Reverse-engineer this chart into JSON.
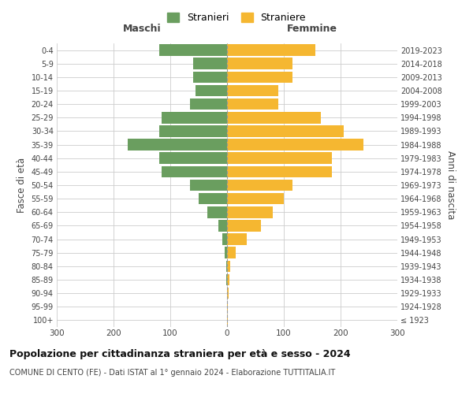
{
  "age_groups": [
    "100+",
    "95-99",
    "90-94",
    "85-89",
    "80-84",
    "75-79",
    "70-74",
    "65-69",
    "60-64",
    "55-59",
    "50-54",
    "45-49",
    "40-44",
    "35-39",
    "30-34",
    "25-29",
    "20-24",
    "15-19",
    "10-14",
    "5-9",
    "0-4"
  ],
  "birth_years": [
    "≤ 1923",
    "1924-1928",
    "1929-1933",
    "1934-1938",
    "1939-1943",
    "1944-1948",
    "1949-1953",
    "1954-1958",
    "1959-1963",
    "1964-1968",
    "1969-1973",
    "1974-1978",
    "1979-1983",
    "1984-1988",
    "1989-1993",
    "1994-1998",
    "1999-2003",
    "2004-2008",
    "2009-2013",
    "2014-2018",
    "2019-2023"
  ],
  "males": [
    0,
    0,
    0,
    1,
    2,
    4,
    8,
    15,
    35,
    50,
    65,
    115,
    120,
    175,
    120,
    115,
    65,
    55,
    60,
    60,
    120
  ],
  "females": [
    2,
    2,
    3,
    4,
    5,
    15,
    35,
    60,
    80,
    100,
    115,
    185,
    185,
    240,
    205,
    165,
    90,
    90,
    115,
    115,
    155
  ],
  "male_color": "#6a9e5f",
  "female_color": "#f5b731",
  "background_color": "#ffffff",
  "grid_color": "#cccccc",
  "title": "Popolazione per cittadinanza straniera per età e sesso - 2024",
  "subtitle": "COMUNE DI CENTO (FE) - Dati ISTAT al 1° gennaio 2024 - Elaborazione TUTTITALIA.IT",
  "xlabel_left": "Maschi",
  "xlabel_right": "Femmine",
  "ylabel_left": "Fasce di età",
  "ylabel_right": "Anni di nascita",
  "legend_male": "Stranieri",
  "legend_female": "Straniere",
  "xlim": 300,
  "bar_height": 0.85
}
